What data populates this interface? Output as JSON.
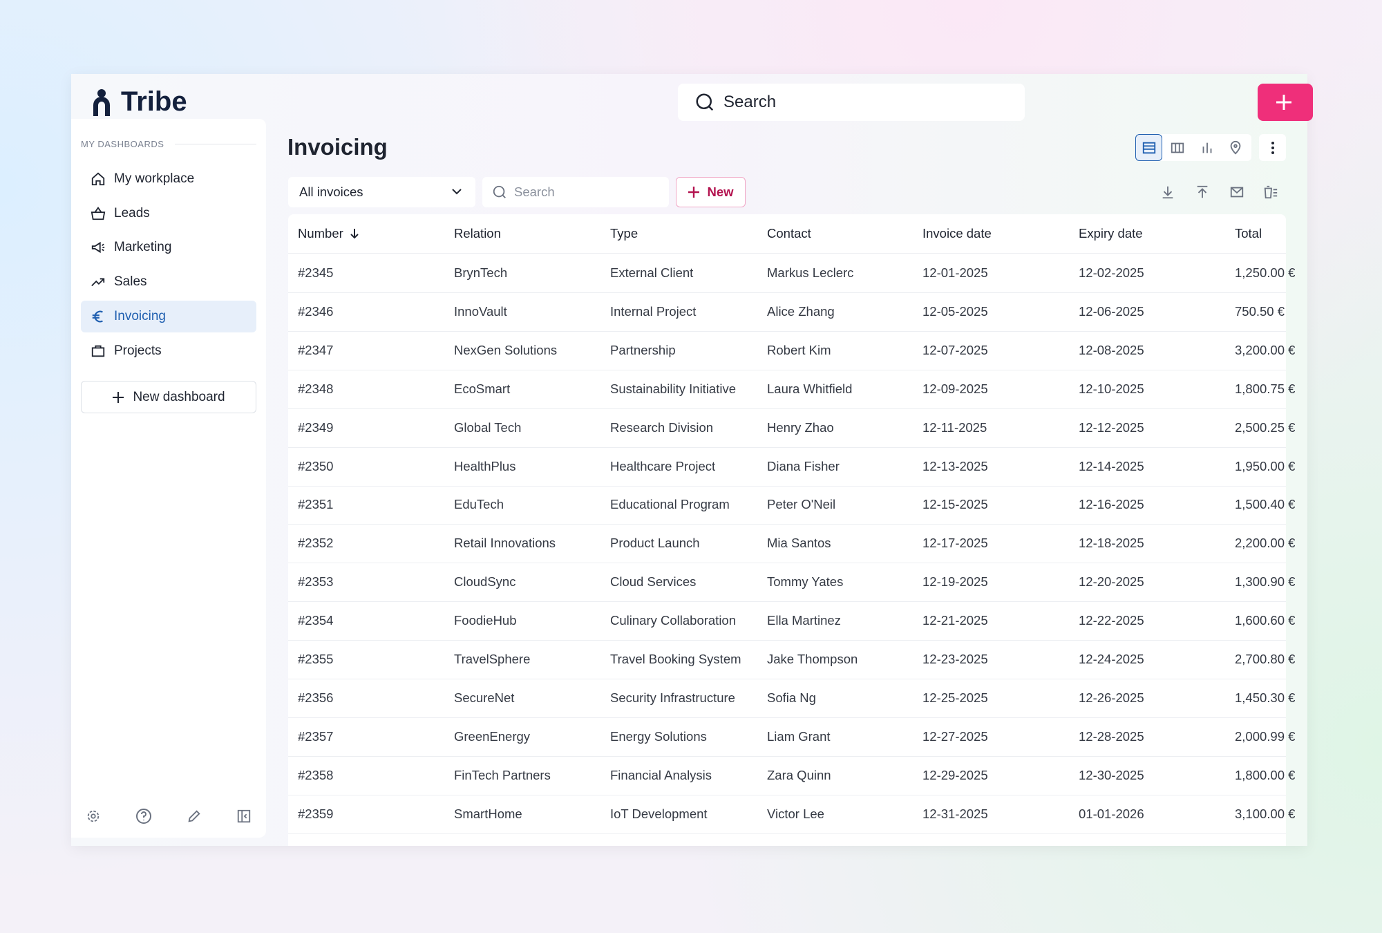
{
  "header": {
    "logo": "Tribe",
    "search": "Search"
  },
  "sidebar": {
    "section_label": "MY DASHBOARDS",
    "items": [
      "My workplace",
      "Leads",
      "Marketing",
      "Sales",
      "Invoicing",
      "Projects"
    ],
    "new_dashboard": "New dashboard"
  },
  "page": {
    "title": "Invoicing"
  },
  "toolbar": {
    "filter": "All invoices",
    "search": "Search",
    "new": "New"
  },
  "table": {
    "columns": [
      "Number",
      "Relation",
      "Type",
      "Contact",
      "Invoice date",
      "Expiry date",
      "Total"
    ],
    "rows": [
      [
        "#2345",
        "BrynTech",
        "External Client",
        "Markus Leclerc",
        "12-01-2025",
        "12-02-2025",
        "1,250.00 €"
      ],
      [
        "#2346",
        "InnoVault",
        "Internal Project",
        "Alice Zhang",
        "12-05-2025",
        "12-06-2025",
        "750.50 €"
      ],
      [
        "#2347",
        "NexGen Solutions",
        "Partnership",
        "Robert Kim",
        "12-07-2025",
        "12-08-2025",
        "3,200.00 €"
      ],
      [
        "#2348",
        "EcoSmart",
        "Sustainability Initiative",
        "Laura Whitfield",
        "12-09-2025",
        "12-10-2025",
        "1,800.75 €"
      ],
      [
        "#2349",
        "Global Tech",
        "Research Division",
        "Henry Zhao",
        "12-11-2025",
        "12-12-2025",
        "2,500.25 €"
      ],
      [
        "#2350",
        "HealthPlus",
        "Healthcare Project",
        "Diana Fisher",
        "12-13-2025",
        "12-14-2025",
        "1,950.00 €"
      ],
      [
        "#2351",
        "EduTech",
        "Educational Program",
        "Peter O'Neil",
        "12-15-2025",
        "12-16-2025",
        "1,500.40 €"
      ],
      [
        "#2352",
        "Retail Innovations",
        "Product Launch",
        "Mia Santos",
        "12-17-2025",
        "12-18-2025",
        "2,200.00 €"
      ],
      [
        "#2353",
        "CloudSync",
        "Cloud Services",
        "Tommy Yates",
        "12-19-2025",
        "12-20-2025",
        "1,300.90 €"
      ],
      [
        "#2354",
        "FoodieHub",
        "Culinary Collaboration",
        "Ella Martinez",
        "12-21-2025",
        "12-22-2025",
        "1,600.60 €"
      ],
      [
        "#2355",
        "TravelSphere",
        "Travel Booking System",
        "Jake Thompson",
        "12-23-2025",
        "12-24-2025",
        "2,700.80 €"
      ],
      [
        "#2356",
        "SecureNet",
        "Security Infrastructure",
        "Sofia Ng",
        "12-25-2025",
        "12-26-2025",
        "1,450.30 €"
      ],
      [
        "#2357",
        "GreenEnergy",
        "Energy Solutions",
        "Liam Grant",
        "12-27-2025",
        "12-28-2025",
        "2,000.99 €"
      ],
      [
        "#2358",
        "FinTech Partners",
        "Financial Analysis",
        "Zara Quinn",
        "12-29-2025",
        "12-30-2025",
        "1,800.00 €"
      ],
      [
        "#2359",
        "SmartHome",
        "IoT Development",
        "Victor Lee",
        "12-31-2025",
        "01-01-2026",
        "3,100.00 €"
      ]
    ]
  }
}
